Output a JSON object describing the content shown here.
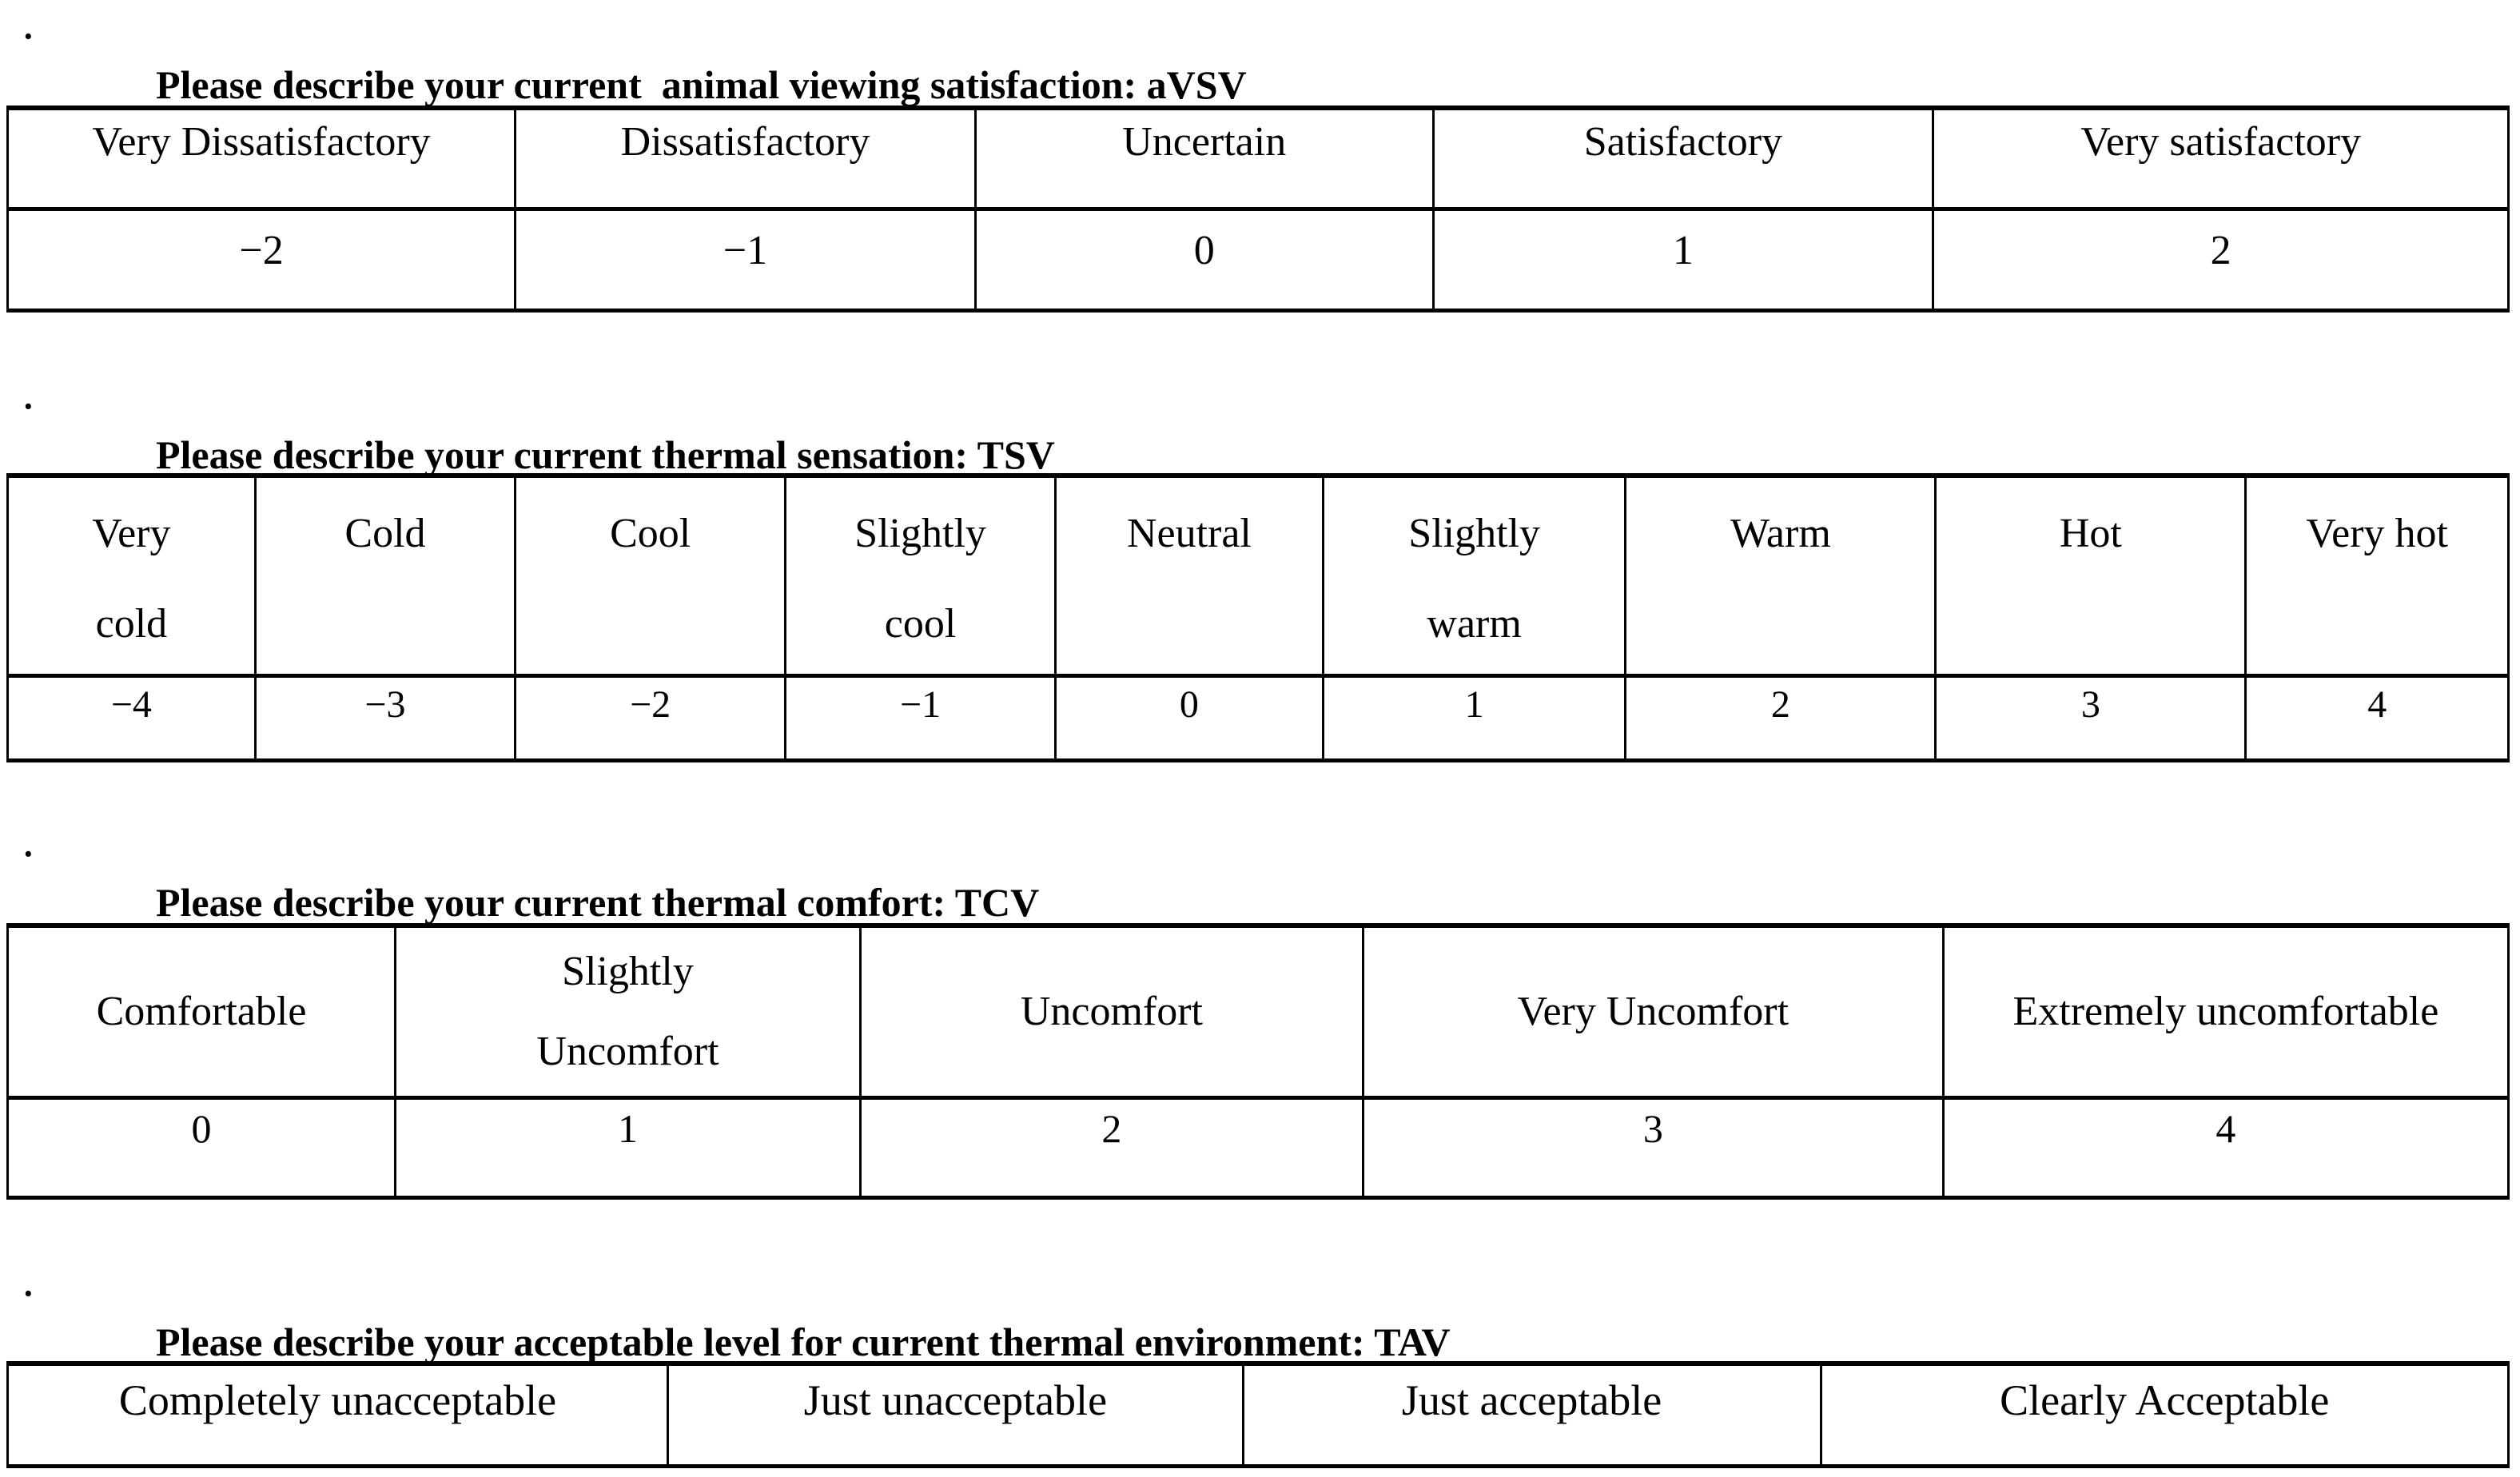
{
  "page": {
    "background_color": "#ffffff",
    "text_color": "#000000",
    "border_color": "#000000"
  },
  "sections": [
    {
      "id": "avsv",
      "bullet": "·",
      "title": "Please describe your current  animal viewing satisfaction: aVSV",
      "table": {
        "show_value_row": true,
        "columns": [
          {
            "lines": [
              "Very Dissatisfactory"
            ],
            "value": "−2"
          },
          {
            "lines": [
              "Dissatisfactory"
            ],
            "value": "−1"
          },
          {
            "lines": [
              "Uncertain"
            ],
            "value": "0"
          },
          {
            "lines": [
              "Satisfactory"
            ],
            "value": "1"
          },
          {
            "lines": [
              "Very satisfactory"
            ],
            "value": "2"
          }
        ]
      }
    },
    {
      "id": "tsv",
      "bullet": "·",
      "title": "Please describe your current thermal sensation: TSV",
      "table": {
        "show_value_row": true,
        "columns": [
          {
            "lines": [
              "Very",
              "cold"
            ],
            "value": "−4"
          },
          {
            "lines": [
              "Cold"
            ],
            "value": "−3"
          },
          {
            "lines": [
              "Cool"
            ],
            "value": "−2"
          },
          {
            "lines": [
              "Slightly",
              "cool"
            ],
            "value": "−1"
          },
          {
            "lines": [
              "Neutral"
            ],
            "value": "0"
          },
          {
            "lines": [
              "Slightly",
              "warm"
            ],
            "value": "1"
          },
          {
            "lines": [
              "Warm"
            ],
            "value": "2"
          },
          {
            "lines": [
              "Hot"
            ],
            "value": "3"
          },
          {
            "lines": [
              "Very hot"
            ],
            "value": "4"
          }
        ]
      }
    },
    {
      "id": "tcv",
      "bullet": "·",
      "title": "Please describe your current thermal comfort: TCV",
      "table": {
        "show_value_row": true,
        "columns": [
          {
            "lines": [
              "Comfortable"
            ],
            "value": "0"
          },
          {
            "lines": [
              "Slightly",
              "Uncomfort"
            ],
            "value": "1"
          },
          {
            "lines": [
              "Uncomfort"
            ],
            "value": "2"
          },
          {
            "lines": [
              "Very Uncomfort"
            ],
            "value": "3"
          },
          {
            "lines": [
              "Extremely uncomfortable"
            ],
            "value": "4"
          }
        ]
      }
    },
    {
      "id": "tav",
      "bullet": "·",
      "title": "Please describe your acceptable level for current thermal environment: TAV",
      "table": {
        "show_value_row": false,
        "columns": [
          {
            "lines": [
              "Completely unacceptable"
            ]
          },
          {
            "lines": [
              "Just unacceptable"
            ]
          },
          {
            "lines": [
              "Just acceptable"
            ]
          },
          {
            "lines": [
              "Clearly Acceptable"
            ]
          }
        ]
      }
    }
  ]
}
